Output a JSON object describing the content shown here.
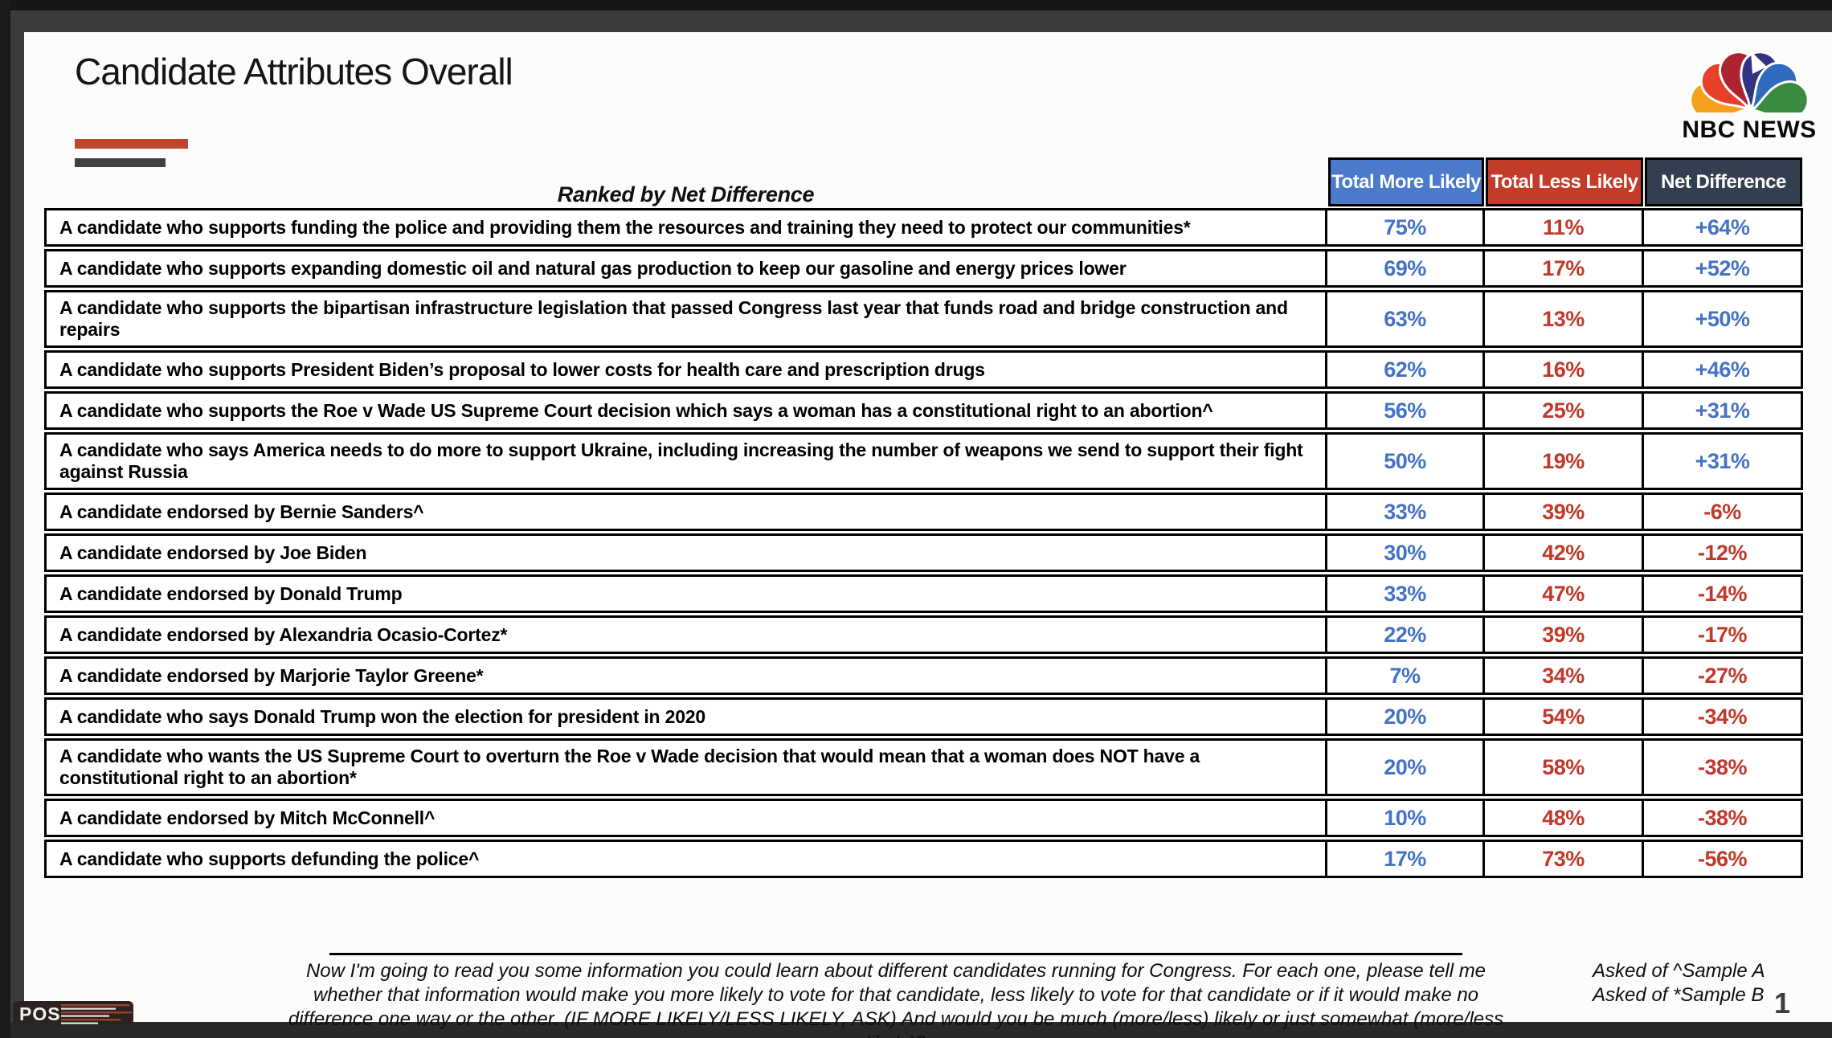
{
  "slide": {
    "title": "Candidate Attributes Overall",
    "subtitle": "Ranked by Net Difference",
    "nbc_logo_text": "NBC NEWS",
    "pos_logo_text": "POS"
  },
  "table": {
    "headers": [
      {
        "label": "Total More Likely"
      },
      {
        "label": "Total Less Likely"
      },
      {
        "label": "Net Difference"
      }
    ],
    "rows": [
      {
        "attribute": "A candidate who supports funding the police and providing them the resources and training they need to protect our communities*",
        "more": "75%",
        "less": "11%",
        "net": "+64%"
      },
      {
        "attribute": "A candidate who supports expanding domestic oil and natural gas production to keep our gasoline and energy prices lower",
        "more": "69%",
        "less": "17%",
        "net": "+52%"
      },
      {
        "attribute": "A candidate who supports the bipartisan infrastructure legislation that passed Congress last year that funds road and bridge construction and repairs",
        "more": "63%",
        "less": "13%",
        "net": "+50%"
      },
      {
        "attribute": "A candidate who supports President Biden’s proposal to lower costs for health care and prescription drugs",
        "more": "62%",
        "less": "16%",
        "net": "+46%"
      },
      {
        "attribute": "A candidate who supports the Roe v Wade US Supreme Court decision which says a woman has a constitutional right to an abortion^",
        "more": "56%",
        "less": "25%",
        "net": "+31%"
      },
      {
        "attribute": "A candidate who says America needs to do more to support Ukraine, including increasing the number of weapons we send to support their fight against Russia",
        "more": "50%",
        "less": "19%",
        "net": "+31%"
      },
      {
        "attribute": "A candidate endorsed by Bernie Sanders^",
        "more": "33%",
        "less": "39%",
        "net": "-6%"
      },
      {
        "attribute": "A candidate endorsed by Joe Biden",
        "more": "30%",
        "less": "42%",
        "net": "-12%"
      },
      {
        "attribute": "A candidate endorsed by Donald Trump",
        "more": "33%",
        "less": "47%",
        "net": "-14%"
      },
      {
        "attribute": "A candidate endorsed by Alexandria Ocasio-Cortez*",
        "more": "22%",
        "less": "39%",
        "net": "-17%"
      },
      {
        "attribute": "A candidate endorsed by Marjorie Taylor Greene*",
        "more": "7%",
        "less": "34%",
        "net": "-27%"
      },
      {
        "attribute": "A candidate who says Donald Trump won the election for president in 2020",
        "more": "20%",
        "less": "54%",
        "net": "-34%"
      },
      {
        "attribute": "A candidate who wants the US Supreme Court to overturn the Roe v Wade decision that would mean that a woman does NOT have a constitutional right to an abortion*",
        "more": "20%",
        "less": "58%",
        "net": "-38%"
      },
      {
        "attribute": "A candidate endorsed by Mitch McConnell^",
        "more": "10%",
        "less": "48%",
        "net": "-38%"
      },
      {
        "attribute": "A candidate who supports defunding the police^",
        "more": "17%",
        "less": "73%",
        "net": "-56%"
      }
    ]
  },
  "footer": {
    "question": "Now I'm going to read you some information you could learn about different candidates running for Congress. For each one, please tell me whether that information would make you more likely to vote for that candidate, less likely to vote for that candidate or if it would make no difference one way or the other. (IF MORE LIKELY/LESS LIKELY, ASK) And would you be much (more/less) likely or just somewhat (more/less likely)?",
    "asked_of_line1": "Asked of ^Sample A",
    "asked_of_line2": "Asked of *Sample B",
    "page_number": "1"
  },
  "colors": {
    "header_blue": "#4a7ac9",
    "header_red": "#c33b2b",
    "header_dark": "#333f50",
    "value_blue": "#4472c4",
    "value_red": "#c0392b",
    "accent_bar_red": "#c0452e",
    "accent_bar_dark": "#404042"
  }
}
